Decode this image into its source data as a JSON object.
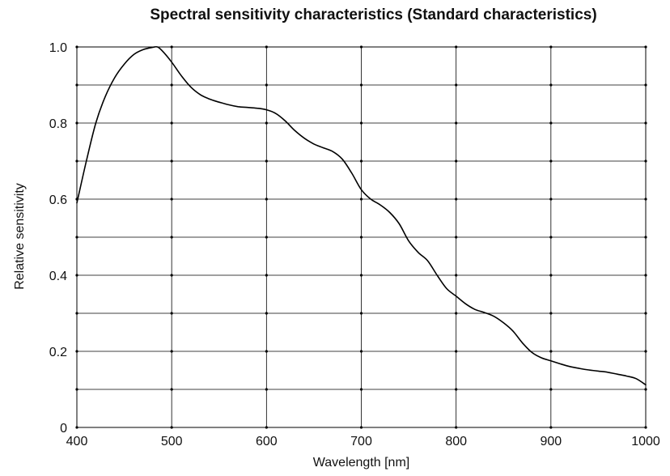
{
  "chart_data": {
    "type": "line",
    "title": "Spectral sensitivity characteristics (Standard characteristics)",
    "xlabel": "Wavelength [nm]",
    "ylabel": "Relative sensitivity",
    "xlim": [
      400,
      1000
    ],
    "ylim": [
      0,
      1.0
    ],
    "x_ticks": [
      400,
      500,
      600,
      700,
      800,
      900,
      1000
    ],
    "x_tick_labels": [
      "400",
      "500",
      "600",
      "700",
      "800",
      "900",
      "1000"
    ],
    "y_ticks": [
      0,
      0.2,
      0.4,
      0.6,
      0.8,
      1.0
    ],
    "y_tick_labels": [
      "0",
      "0.2",
      "0.4",
      "0.6",
      "0.8",
      "1.0"
    ],
    "grid": true,
    "line_color": "#000000",
    "series": [
      {
        "x": [
          400,
          410,
          420,
          430,
          440,
          450,
          460,
          470,
          480,
          485,
          490,
          500,
          510,
          520,
          530,
          540,
          550,
          560,
          570,
          580,
          590,
          600,
          610,
          620,
          630,
          640,
          650,
          660,
          670,
          680,
          690,
          700,
          710,
          720,
          730,
          740,
          750,
          760,
          770,
          780,
          790,
          800,
          810,
          820,
          830,
          840,
          850,
          860,
          870,
          880,
          890,
          900,
          910,
          920,
          930,
          940,
          950,
          960,
          970,
          980,
          990,
          1000
        ],
        "y": [
          0.59,
          0.7,
          0.8,
          0.87,
          0.92,
          0.955,
          0.98,
          0.993,
          0.999,
          1.0,
          0.99,
          0.96,
          0.925,
          0.895,
          0.875,
          0.863,
          0.855,
          0.848,
          0.843,
          0.841,
          0.839,
          0.835,
          0.825,
          0.805,
          0.78,
          0.76,
          0.745,
          0.735,
          0.725,
          0.705,
          0.668,
          0.625,
          0.6,
          0.585,
          0.565,
          0.535,
          0.49,
          0.46,
          0.438,
          0.4,
          0.365,
          0.345,
          0.325,
          0.31,
          0.302,
          0.292,
          0.275,
          0.253,
          0.222,
          0.197,
          0.183,
          0.175,
          0.167,
          0.16,
          0.155,
          0.151,
          0.148,
          0.145,
          0.14,
          0.135,
          0.128,
          0.112
        ]
      }
    ]
  }
}
